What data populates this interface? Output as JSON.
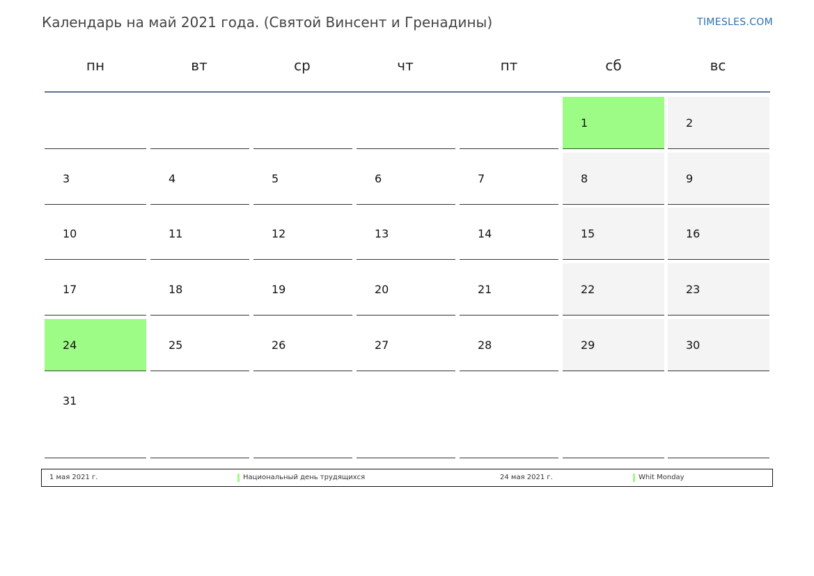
{
  "header": {
    "title": "Календарь на май 2021 года. (Святой Винсент и Гренадины)",
    "brand": "TIMESLES.COM"
  },
  "weekdays": [
    "пн",
    "вт",
    "ср",
    "чт",
    "пт",
    "сб",
    "вс"
  ],
  "calendar": {
    "first_weekday_index": 5,
    "days_in_month": 31,
    "weekend_indices": [
      5,
      6
    ],
    "holiday_days": [
      1,
      24
    ],
    "colors": {
      "holiday": "#9cfc86",
      "weekend": "#f4f4f4",
      "header_rule": "#5a7190"
    }
  },
  "legend": [
    {
      "date": "1 мая 2021 г.",
      "name": "Национальный день трудящихся"
    },
    {
      "date": "24 мая 2021 г.",
      "name": "Whit Monday"
    }
  ]
}
